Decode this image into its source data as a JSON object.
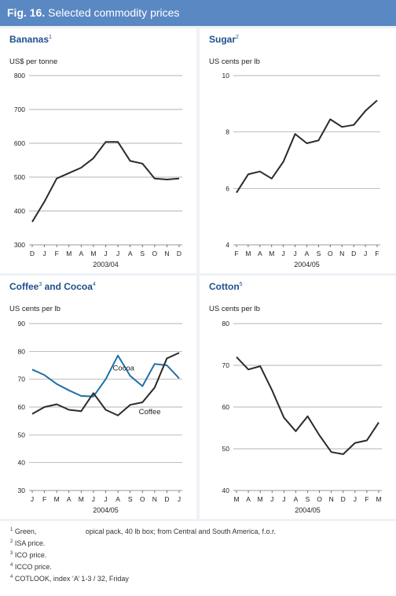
{
  "figure": {
    "label": "Fig. 16.",
    "title": "Selected commodity prices"
  },
  "chart_data": [
    {
      "id": "bananas",
      "type": "line",
      "title": "Bananas",
      "title_sup": "1",
      "ylabel": "US$ per tonne",
      "xlabel": "2003/04",
      "ylim": [
        300,
        800
      ],
      "yticks": [
        300,
        400,
        500,
        600,
        700,
        800
      ],
      "categories": [
        "D",
        "J",
        "F",
        "M",
        "A",
        "M",
        "J",
        "J",
        "A",
        "S",
        "O",
        "N",
        "D"
      ],
      "series": [
        {
          "values": [
            368,
            428,
            496,
            512,
            528,
            556,
            604,
            604,
            548,
            540,
            496,
            493,
            496
          ],
          "color": "#2b2b2b"
        }
      ]
    },
    {
      "id": "sugar",
      "type": "line",
      "title": "Sugar",
      "title_sup": "2",
      "ylabel": "US cents per lb",
      "xlabel": "2004/05",
      "ylim": [
        4,
        10
      ],
      "yticks": [
        4,
        6,
        8,
        10
      ],
      "categories": [
        "F",
        "M",
        "A",
        "M",
        "J",
        "J",
        "A",
        "S",
        "O",
        "N",
        "D",
        "J",
        "F"
      ],
      "series": [
        {
          "values": [
            5.85,
            6.5,
            6.6,
            6.35,
            6.95,
            7.93,
            7.6,
            7.7,
            8.45,
            8.18,
            8.25,
            8.75,
            9.12
          ],
          "color": "#2b2b2b"
        }
      ]
    },
    {
      "id": "coffee-cocoa",
      "type": "line",
      "title": "Coffee",
      "title_sup": "3",
      "title_mid": " and Cocoa",
      "title_sup2": "4",
      "ylabel": "US cents per lb",
      "xlabel": "2004/05",
      "ylim": [
        30,
        90
      ],
      "yticks": [
        30,
        40,
        50,
        60,
        70,
        80,
        90
      ],
      "categories": [
        "J",
        "F",
        "M",
        "A",
        "M",
        "J",
        "J",
        "A",
        "S",
        "O",
        "N",
        "D",
        "J"
      ],
      "series": [
        {
          "name": "Cocoa",
          "values": [
            73.5,
            71.5,
            68.3,
            66.0,
            64.0,
            63.8,
            70.0,
            78.5,
            71.2,
            67.5,
            75.5,
            75.0,
            70.3
          ],
          "color": "#1f6fa8"
        },
        {
          "name": "Coffee",
          "values": [
            57.5,
            60.0,
            61.0,
            59.0,
            58.5,
            65.0,
            59.0,
            57.0,
            60.8,
            61.7,
            67.0,
            77.5,
            79.5
          ],
          "color": "#2b2b2b"
        }
      ],
      "annotations": [
        {
          "text": "Cocoa",
          "series": 0,
          "index": 6,
          "dx": 9,
          "dy": -11
        },
        {
          "text": "Coffee",
          "series": 1,
          "index": 8,
          "dx": 11,
          "dy": 12
        }
      ]
    },
    {
      "id": "cotton",
      "type": "line",
      "title": "Cotton",
      "title_sup": "5",
      "ylabel": "US cents per lb",
      "xlabel": "2004/05",
      "ylim": [
        40,
        80
      ],
      "yticks": [
        40,
        50,
        60,
        70,
        80
      ],
      "categories": [
        "M",
        "A",
        "M",
        "J",
        "J",
        "A",
        "S",
        "O",
        "N",
        "D",
        "J",
        "F",
        "M"
      ],
      "series": [
        {
          "values": [
            72.0,
            69.0,
            69.8,
            64.0,
            57.5,
            54.2,
            57.8,
            53.2,
            49.2,
            48.7,
            51.4,
            52.0,
            56.3
          ],
          "color": "#2b2b2b"
        }
      ]
    }
  ],
  "footnotes": [
    {
      "sup": "1",
      "text": " Green,                         opical pack, 40 lb box; from Central and South America, f.o.r."
    },
    {
      "sup": "2",
      "text": " ISA price."
    },
    {
      "sup": "3",
      "text": " ICO price."
    },
    {
      "sup": "4",
      "text": " ICCO price."
    },
    {
      "sup": "4",
      "text": " COTLOOK, index ‘A’ 1-3 / 32, Friday"
    }
  ],
  "colors": {
    "header": "#5a88c3",
    "background": "#eef2f7",
    "title": "#1e4f8c",
    "grid": "#9a9a9a"
  }
}
